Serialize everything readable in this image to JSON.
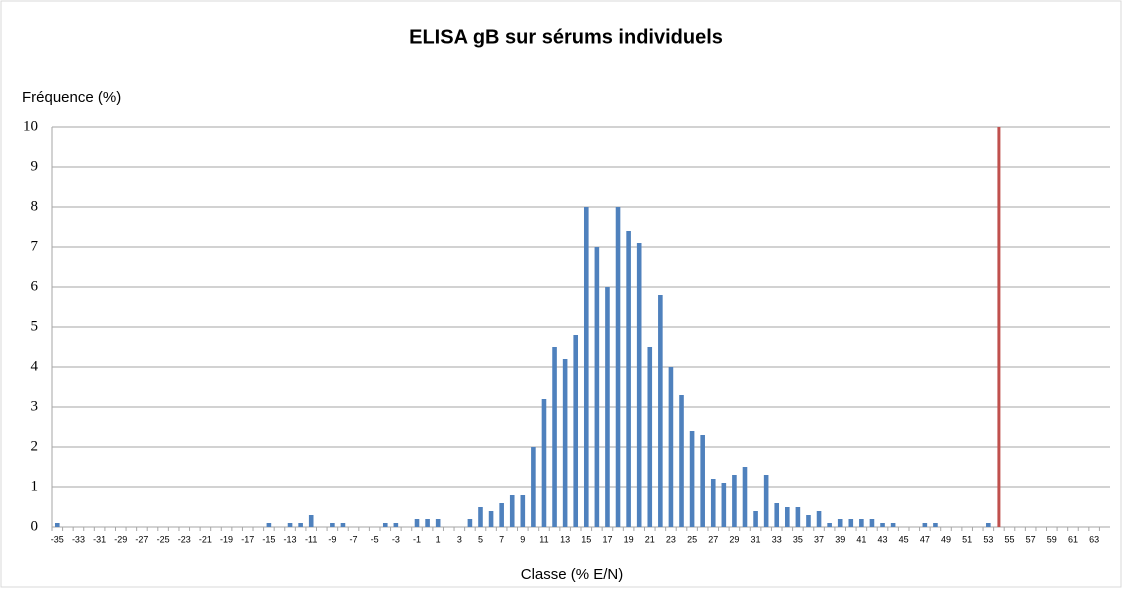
{
  "chart_data": {
    "type": "bar",
    "title": "ELISA gB sur sérums individuels",
    "y_label": "Fréquence (%)",
    "x_label": "Classe (% E/N)",
    "categories": [
      -35,
      null,
      -33,
      null,
      -31,
      null,
      -29,
      null,
      -27,
      null,
      -25,
      null,
      -23,
      null,
      -21,
      null,
      -19,
      null,
      -17,
      null,
      -15,
      null,
      -13,
      null,
      -11,
      null,
      -9,
      null,
      -7,
      null,
      -5,
      null,
      -3,
      null,
      -1,
      null,
      1,
      null,
      3,
      null,
      5,
      null,
      7,
      null,
      9,
      null,
      11,
      null,
      13,
      null,
      15,
      null,
      17,
      null,
      19,
      null,
      21,
      null,
      23,
      null,
      25,
      null,
      27,
      null,
      29,
      null,
      31,
      null,
      33,
      null,
      35,
      null,
      37,
      null,
      39,
      null,
      41,
      null,
      43,
      null,
      45,
      null,
      47,
      null,
      49,
      null,
      51,
      null,
      53,
      null,
      55,
      null,
      57,
      null,
      59,
      null,
      61,
      null,
      63,
      null
    ],
    "values": [
      0.1,
      0,
      0,
      0,
      0,
      0,
      0,
      0,
      0,
      0,
      0,
      0,
      0,
      0,
      0,
      0,
      0,
      0,
      0,
      0,
      0.1,
      0,
      0.1,
      0.1,
      0.3,
      0,
      0.1,
      0.1,
      0,
      0,
      0,
      0.1,
      0.1,
      0,
      0.2,
      0.2,
      0.2,
      0,
      0,
      0.2,
      0.5,
      0.4,
      0.6,
      0.8,
      0.8,
      2,
      3.2,
      4.5,
      4.2,
      4.8,
      8,
      7,
      6,
      8,
      7.4,
      7.1,
      4.5,
      5.8,
      4,
      3.3,
      2.4,
      2.3,
      1.2,
      1.1,
      1.3,
      1.5,
      0.4,
      1.3,
      0.6,
      0.5,
      0.5,
      0.3,
      0.4,
      0.1,
      0.2,
      0.2,
      0.2,
      0.2,
      0.1,
      0.1,
      0,
      0,
      0.1,
      0.1,
      0,
      0,
      0,
      0,
      0.1,
      0,
      0,
      0,
      0,
      0,
      0,
      0,
      0,
      0,
      0,
      0
    ],
    "color": "#4f81bd",
    "reference_line": {
      "index": 89,
      "color": "#c0504d"
    },
    "ylim": [
      0,
      10
    ],
    "yticks": [
      0,
      1,
      2,
      3,
      4,
      5,
      6,
      7,
      8,
      9,
      10
    ],
    "grid": true
  }
}
